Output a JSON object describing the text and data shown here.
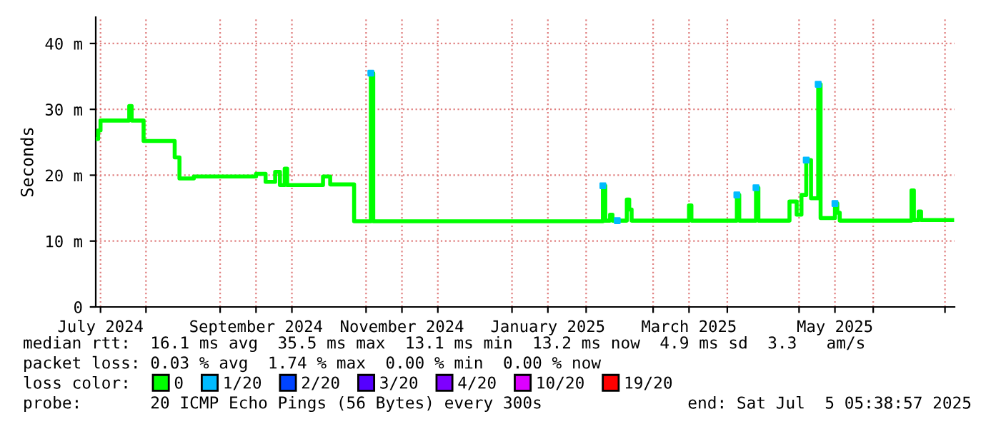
{
  "chart_data": {
    "type": "step",
    "ylabel": "Seconds",
    "x": [
      "2024-07-11",
      "2024-07-12",
      "2024-07-13",
      "2024-07-25",
      "2024-07-26",
      "2024-07-31",
      "2024-08-13",
      "2024-08-15",
      "2024-08-21",
      "2024-09-16",
      "2024-09-20",
      "2024-09-24",
      "2024-09-26",
      "2024-09-28",
      "2024-09-29",
      "2024-10-14",
      "2024-10-17",
      "2024-10-27",
      "2024-11-03",
      "2024-11-04",
      "2025-02-08",
      "2025-02-09",
      "2025-02-11",
      "2025-02-12",
      "2025-02-18",
      "2025-02-19",
      "2025-02-20",
      "2025-03-16",
      "2025-03-17",
      "2025-04-05",
      "2025-04-06",
      "2025-04-13",
      "2025-04-14",
      "2025-04-27",
      "2025-04-30",
      "2025-05-02",
      "2025-05-04",
      "2025-05-06",
      "2025-05-09",
      "2025-05-10",
      "2025-05-16",
      "2025-05-17",
      "2025-05-18",
      "2025-06-17",
      "2025-06-18",
      "2025-06-20",
      "2025-06-21",
      "2025-07-04"
    ],
    "series": [
      {
        "name": "0",
        "color": "#00ff00",
        "values": [
          25.5,
          26.8,
          28.3,
          30.5,
          28.3,
          25.2,
          22.7,
          19.5,
          19.8,
          20.2,
          19.0,
          20.5,
          18.5,
          21.0,
          18.5,
          19.8,
          18.6,
          13.0,
          35.5,
          13.0,
          18.4,
          13.1,
          14.0,
          13.1,
          16.3,
          14.8,
          13.1,
          15.4,
          13.1,
          17.0,
          13.1,
          18.1,
          13.1,
          16.0,
          14.0,
          17.0,
          22.3,
          16.5,
          33.8,
          13.5,
          15.7,
          14.3,
          13.1,
          17.7,
          13.2,
          14.5,
          13.2,
          13.2
        ]
      },
      {
        "name": "1/20",
        "color": "#00bbff",
        "type": "scatter",
        "marker": "square",
        "x": [
          "2024-11-03",
          "2025-02-08",
          "2025-02-14",
          "2025-04-05",
          "2025-04-13",
          "2025-05-04",
          "2025-05-09",
          "2025-05-16"
        ],
        "values": [
          35.5,
          18.4,
          13.1,
          17.0,
          18.1,
          22.3,
          33.8,
          15.7
        ]
      },
      {
        "name": "2/20",
        "color": "#0044ff",
        "type": "scatter",
        "marker": "square",
        "values": [
          null,
          null,
          null,
          null,
          null,
          null,
          null,
          null,
          null,
          null,
          null,
          null,
          null,
          null,
          null,
          null,
          null,
          null,
          null,
          null,
          null,
          null,
          null,
          null,
          null,
          null,
          null,
          null,
          null,
          null,
          null,
          null,
          null,
          null,
          null,
          null,
          null,
          null,
          null,
          null,
          null,
          null,
          null,
          null,
          null,
          null,
          null,
          null
        ]
      },
      {
        "name": "3/20",
        "color": "#5500ff",
        "type": "scatter",
        "marker": "square",
        "values": [
          null,
          null,
          null,
          null,
          null,
          null,
          null,
          null,
          null,
          null,
          null,
          null,
          null,
          null,
          null,
          null,
          null,
          null,
          null,
          null,
          null,
          null,
          null,
          null,
          null,
          null,
          null,
          null,
          null,
          null,
          null,
          null,
          null,
          null,
          null,
          null,
          null,
          null,
          null,
          null,
          null,
          null,
          null,
          null,
          null,
          null,
          null,
          null
        ]
      },
      {
        "name": "4/20",
        "color": "#7e00ff",
        "type": "scatter",
        "marker": "square",
        "values": [
          null,
          null,
          null,
          null,
          null,
          null,
          null,
          null,
          null,
          null,
          null,
          null,
          null,
          null,
          null,
          null,
          null,
          null,
          null,
          null,
          null,
          null,
          null,
          null,
          null,
          null,
          null,
          null,
          null,
          null,
          null,
          null,
          null,
          null,
          null,
          null,
          null,
          null,
          null,
          null,
          null,
          null,
          null,
          null,
          null,
          null,
          null,
          null
        ]
      },
      {
        "name": "10/20",
        "color": "#dd00ff",
        "type": "scatter",
        "marker": "square",
        "values": [
          null,
          null,
          null,
          null,
          null,
          null,
          null,
          null,
          null,
          null,
          null,
          null,
          null,
          null,
          null,
          null,
          null,
          null,
          null,
          null,
          null,
          null,
          null,
          null,
          null,
          null,
          null,
          null,
          null,
          null,
          null,
          null,
          null,
          null,
          null,
          null,
          null,
          null,
          null,
          null,
          null,
          null,
          null,
          null,
          null,
          null,
          null,
          null
        ]
      },
      {
        "name": "19/20",
        "color": "#ff0000",
        "type": "scatter",
        "marker": "square",
        "values": [
          null,
          null,
          null,
          null,
          null,
          null,
          null,
          null,
          null,
          null,
          null,
          null,
          null,
          null,
          null,
          null,
          null,
          null,
          null,
          null,
          null,
          null,
          null,
          null,
          null,
          null,
          null,
          null,
          null,
          null,
          null,
          null,
          null,
          null,
          null,
          null,
          null,
          null,
          null,
          null,
          null,
          null,
          null,
          null,
          null,
          null,
          null,
          null
        ]
      }
    ],
    "xlim": [
      "2024-07-11",
      "2025-07-05"
    ],
    "xticks": [
      {
        "value": "2024-07-13",
        "label": "July 2024"
      },
      {
        "value": "2024-08-01",
        "label": null
      },
      {
        "value": "2024-09-01",
        "label": null
      },
      {
        "value": "2024-09-16",
        "label": "September 2024"
      },
      {
        "value": "2024-10-01",
        "label": null
      },
      {
        "value": "2024-11-01",
        "label": null
      },
      {
        "value": "2024-11-16",
        "label": "November 2024"
      },
      {
        "value": "2024-12-01",
        "label": null
      },
      {
        "value": "2025-01-01",
        "label": null
      },
      {
        "value": "2025-01-16",
        "label": "January 2025"
      },
      {
        "value": "2025-02-01",
        "label": null
      },
      {
        "value": "2025-03-01",
        "label": null
      },
      {
        "value": "2025-03-16",
        "label": "March 2025"
      },
      {
        "value": "2025-04-01",
        "label": null
      },
      {
        "value": "2025-05-01",
        "label": null
      },
      {
        "value": "2025-05-16",
        "label": "May 2025"
      },
      {
        "value": "2025-06-01",
        "label": null
      },
      {
        "value": "2025-07-01",
        "label": null
      }
    ],
    "ylim": [
      0,
      44
    ],
    "yticks": [
      0,
      {
        "value": 10,
        "label": "10 m"
      },
      {
        "value": 20,
        "label": "20 m"
      },
      {
        "value": 30,
        "label": "30 m"
      },
      {
        "value": 40,
        "label": "40 m"
      }
    ],
    "grid": true,
    "legend": "bottom",
    "line_style": "solid",
    "annotations": [
      "median rtt:  16.1 ms avg  35.5 ms max  13.1 ms min  13.2 ms now  4.9 ms sd  3.3   am/s",
      "packet loss: 0.03 % avg  1.74 % max  0.00 % min  0.00 % now",
      "loss color:",
      "probe:       20 ICMP Echo Pings (56 Bytes) every 300s",
      "end: Sat Jul  5 05:38:57 2025"
    ]
  }
}
